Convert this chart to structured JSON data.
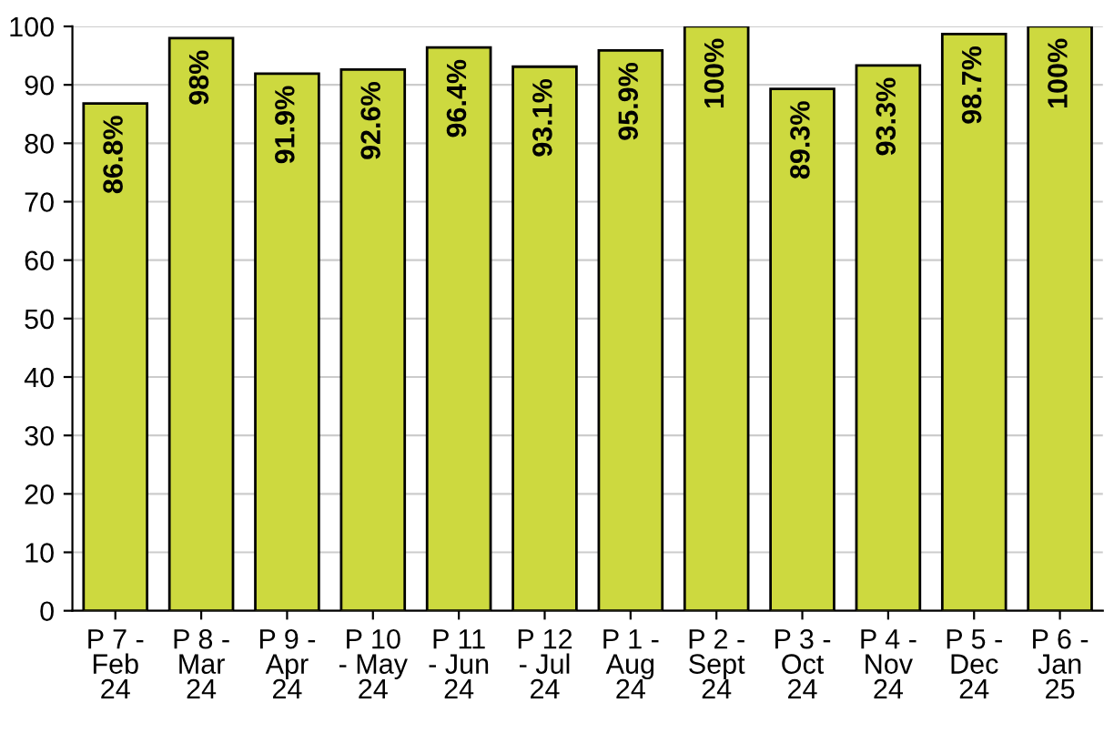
{
  "chart_data": {
    "type": "bar",
    "categories": [
      "P 7 - Feb 24",
      "P 8 - Mar 24",
      "P 9 - Apr 24",
      "P 10 - May 24",
      "P 11 - Jun 24",
      "P 12 - Jul 24",
      "P 1 - Aug 24",
      "P 2 - Sept 24",
      "P 3 - Oct 24",
      "P 4 - Nov 24",
      "P 5 - Dec 24",
      "P 6 - Jan 25"
    ],
    "values": [
      86.8,
      98,
      91.9,
      92.6,
      96.4,
      93.1,
      95.9,
      100,
      89.3,
      93.3,
      98.7,
      100
    ],
    "value_labels": [
      "86.8%",
      "98%",
      "91.9%",
      "92.6%",
      "96.4%",
      "93.1%",
      "95.9%",
      "100%",
      "89.3%",
      "93.3%",
      "98.7%",
      "100%"
    ],
    "color": "#cdd93f",
    "ylim": [
      0,
      100
    ],
    "yticks": [
      0,
      10,
      20,
      30,
      40,
      50,
      60,
      70,
      80,
      90,
      100
    ],
    "grid": "y"
  }
}
